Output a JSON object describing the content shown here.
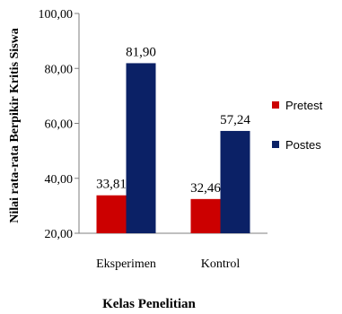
{
  "chart_data": {
    "type": "bar",
    "title": "",
    "ylabel": "Nilai rata-rata Berpikir Kritis Siswa",
    "xlabel": "Kelas Penelitian",
    "categories": [
      "Eksperimen",
      "Kontrol"
    ],
    "series": [
      {
        "name": "Pretest",
        "color": "#cc0000",
        "values": [
          33.81,
          32.46
        ],
        "labels": [
          "33,81",
          "32,46"
        ]
      },
      {
        "name": "Postes",
        "color": "#0b2166",
        "values": [
          81.9,
          57.24
        ],
        "labels": [
          "81,90",
          "57,24"
        ]
      }
    ],
    "ylim": [
      20,
      100
    ],
    "yticks": [
      20,
      40,
      60,
      80,
      100
    ],
    "ytick_labels": [
      "20,00",
      "40,00",
      "60,00",
      "80,00",
      "100,00"
    ],
    "grid": false,
    "legend_position": "right"
  }
}
